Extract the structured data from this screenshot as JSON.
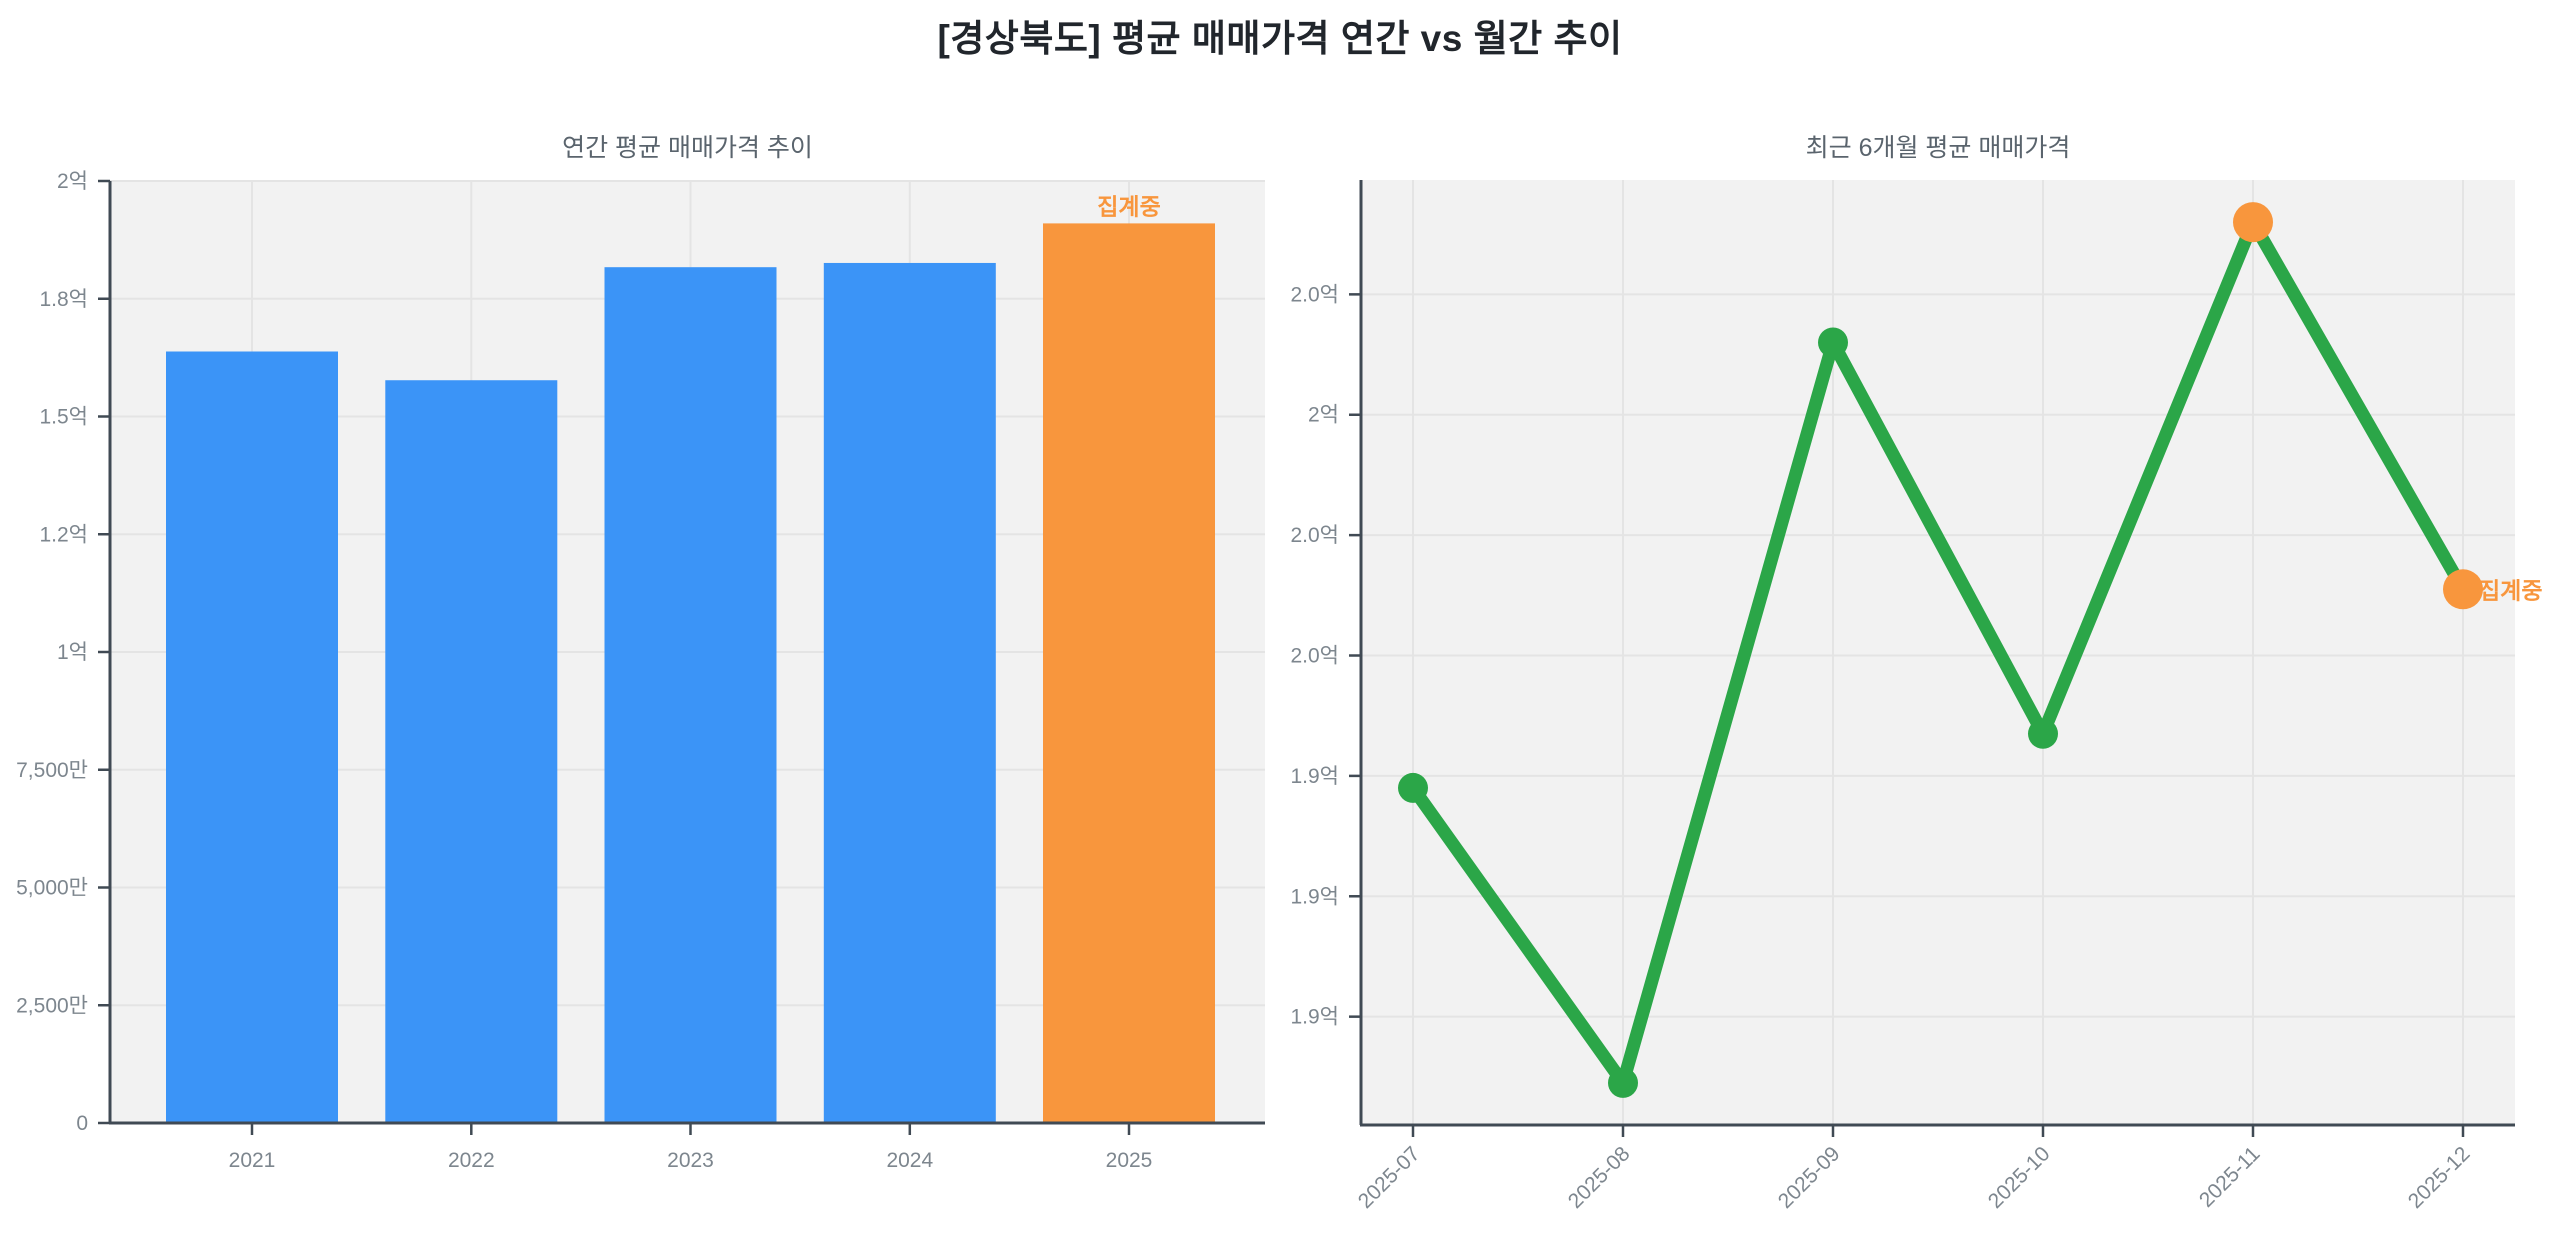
{
  "page_title": "[경상북도] 평균 매매가격 연간 vs 월간 추이",
  "colors": {
    "bar_blue": "#3b94f7",
    "highlight_orange": "#f8963d",
    "line_green": "#2ba648",
    "plot_background": "#f2f2f2",
    "grid": "#e4e4e4",
    "axis": "#404a54",
    "tick_text": "#7d868e"
  },
  "annotation_label": "집계중",
  "chart_data": [
    {
      "id": "annual",
      "type": "bar",
      "title": "연간 평균 매매가격 추이",
      "unit": "억원",
      "categories": [
        "2021",
        "2022",
        "2023",
        "2024",
        "2025"
      ],
      "values": [
        1.638,
        1.577,
        1.817,
        1.826,
        1.91
      ],
      "bar_colors": [
        "#3b94f7",
        "#3b94f7",
        "#3b94f7",
        "#3b94f7",
        "#f8963d"
      ],
      "ylim": [
        0,
        2.0
      ],
      "yticks": [
        {
          "label": "2억",
          "value": 2.0
        },
        {
          "label": "1.8억",
          "value": 1.75
        },
        {
          "label": "1.5억",
          "value": 1.5
        },
        {
          "label": "1.2억",
          "value": 1.25
        },
        {
          "label": "1억",
          "value": 1.0
        },
        {
          "label": "7,500만",
          "value": 0.75
        },
        {
          "label": "5,000만",
          "value": 0.5
        },
        {
          "label": "2,500만",
          "value": 0.25
        },
        {
          "label": "0",
          "value": 0
        }
      ],
      "grid": true,
      "legend": false,
      "annotations": [
        {
          "text": "집계중",
          "target": "2025",
          "color": "#f8963d",
          "position": "above-bar"
        }
      ]
    },
    {
      "id": "monthly",
      "type": "line",
      "title": "최근 6개월 평균 매매가격",
      "unit": "억원",
      "x": [
        "2025-07",
        "2025-08",
        "2025-09",
        "2025-10",
        "2025-11",
        "2025-12"
      ],
      "values": [
        1.938,
        1.889,
        2.012,
        1.947,
        2.032,
        1.971
      ],
      "line_color": "#2ba648",
      "point_colors": [
        "#2ba648",
        "#2ba648",
        "#2ba648",
        "#2ba648",
        "#f8963d",
        "#f8963d"
      ],
      "ylim": [
        1.882,
        2.039
      ],
      "yticks": [
        {
          "label": "2.0억",
          "value": 2.02
        },
        {
          "label": "2억",
          "value": 2.0
        },
        {
          "label": "2.0억",
          "value": 1.98
        },
        {
          "label": "2.0억",
          "value": 1.96
        },
        {
          "label": "1.9억",
          "value": 1.94
        },
        {
          "label": "1.9억",
          "value": 1.92
        },
        {
          "label": "1.9억",
          "value": 1.9
        }
      ],
      "grid": true,
      "legend": false,
      "x_label_rotation": -45,
      "annotations": [
        {
          "text": "집계중",
          "target": "2025-12",
          "color": "#f8963d",
          "position": "right-of-point"
        }
      ]
    }
  ]
}
